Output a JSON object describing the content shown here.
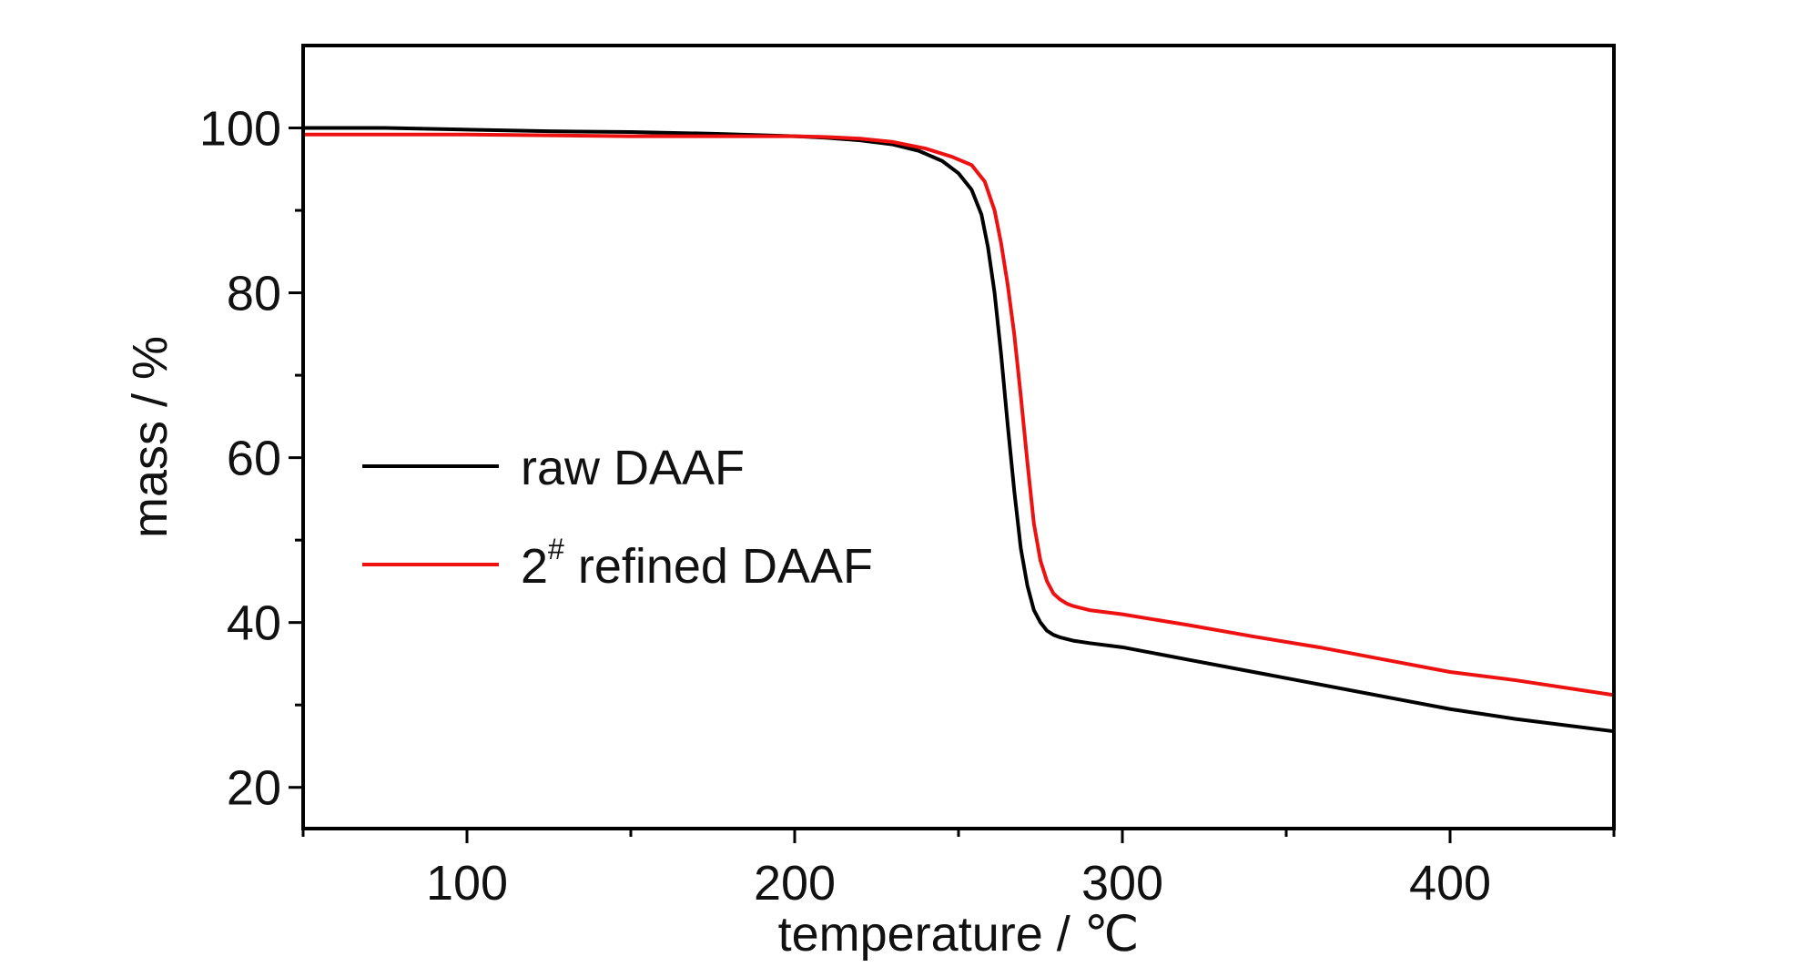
{
  "chart_data": {
    "type": "line",
    "title": "",
    "xlabel": "temperature / ℃",
    "ylabel": "mass / %",
    "xlim": [
      50,
      450
    ],
    "ylim": [
      15,
      110
    ],
    "x_ticks": [
      100,
      200,
      300,
      400
    ],
    "x_minor_ticks": [
      50,
      150,
      250,
      350,
      450
    ],
    "y_ticks": [
      20,
      40,
      60,
      80,
      100
    ],
    "y_minor_ticks": [
      30,
      50,
      70,
      90
    ],
    "grid": false,
    "legend_position": "center-left",
    "series": [
      {
        "name": "raw DAAF",
        "color": "#000000",
        "x": [
          50,
          75,
          100,
          125,
          150,
          175,
          200,
          210,
          220,
          230,
          238,
          245,
          250,
          254,
          257,
          259,
          261,
          263,
          265,
          267,
          269,
          271,
          273,
          275,
          277,
          279,
          281,
          283,
          285,
          290,
          300,
          320,
          340,
          360,
          380,
          400,
          420,
          450
        ],
        "y": [
          100,
          100,
          99.8,
          99.6,
          99.5,
          99.3,
          99.0,
          98.8,
          98.5,
          98.0,
          97.2,
          96.0,
          94.5,
          92.5,
          89.5,
          85.5,
          80.0,
          72.5,
          64.0,
          56.0,
          49.0,
          44.5,
          41.5,
          40.0,
          39.0,
          38.5,
          38.2,
          38.0,
          37.8,
          37.5,
          37.0,
          35.5,
          34.0,
          32.5,
          31.0,
          29.5,
          28.3,
          26.8
        ]
      },
      {
        "name": "2# refined DAAF",
        "color": "#ee1111",
        "x": [
          50,
          75,
          100,
          125,
          150,
          175,
          200,
          210,
          220,
          230,
          240,
          248,
          254,
          258,
          261,
          263,
          265,
          267,
          269,
          271,
          273,
          275,
          277,
          279,
          281,
          283,
          285,
          287,
          290,
          300,
          320,
          340,
          360,
          380,
          400,
          420,
          450
        ],
        "y": [
          99.2,
          99.2,
          99.2,
          99.1,
          99.0,
          99.0,
          99.0,
          98.9,
          98.7,
          98.3,
          97.5,
          96.5,
          95.5,
          93.5,
          90.0,
          86.0,
          81.0,
          75.0,
          67.5,
          59.5,
          52.0,
          47.5,
          45.0,
          43.5,
          42.8,
          42.3,
          42.0,
          41.8,
          41.5,
          41.0,
          39.7,
          38.3,
          37.0,
          35.5,
          34.0,
          33.0,
          31.2
        ]
      }
    ]
  }
}
